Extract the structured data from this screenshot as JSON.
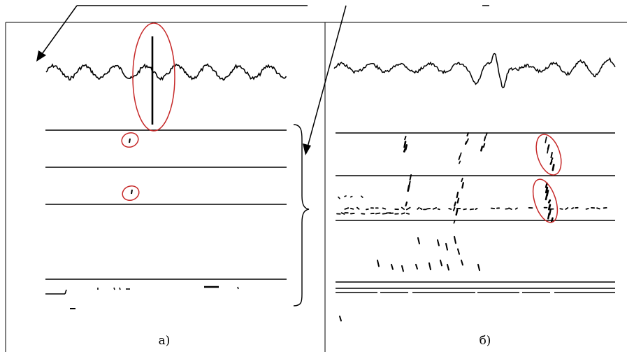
{
  "panels": [
    {
      "label": "а)"
    },
    {
      "label": "б)"
    }
  ],
  "colors": {
    "ink": "#000000",
    "highlight": "#c62828",
    "background": "#ffffff"
  }
}
